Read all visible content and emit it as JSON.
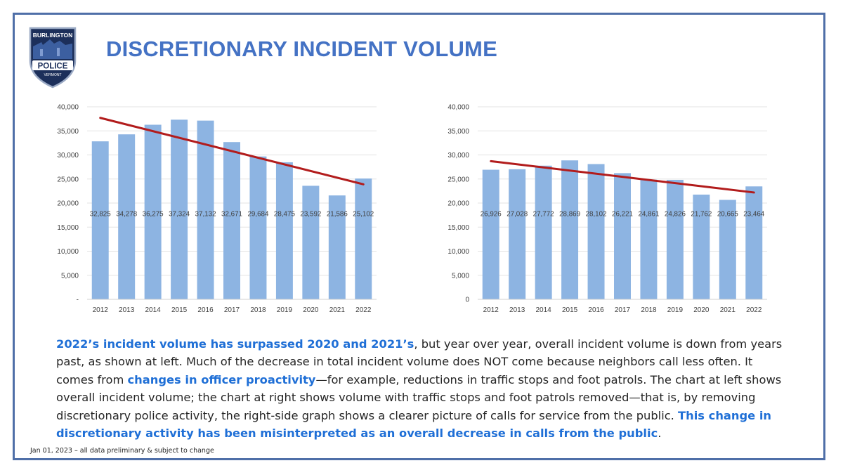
{
  "page": {
    "title": "DISCRETIONARY INCIDENT VOLUME",
    "logo": {
      "top_text": "BURLINGTON",
      "main_text": "POLICE",
      "bottom_text": "VERMONT"
    },
    "body": {
      "p1_hl": "2022’s incident volume has surpassed 2020 and 2021’s",
      "p1_rest": ", but year over year, overall incident volume is down from years past, as shown at left. Much of the decrease in total incident volume does NOT come because neighbors call less often. It comes from ",
      "p2_hl": "changes in officer proactivity",
      "p2_rest": "—for example, reductions in traffic stops and foot patrols. The chart at left shows overall incident volume; the chart at right shows volume with traffic stops and foot patrols removed—that is, by removing discretionary police activity, the right-side graph shows a clearer picture of calls for service from the public. ",
      "p3_hl": "This change in discretionary activity has been misinterpreted as an overall decrease in calls from the public",
      "p3_end": "."
    },
    "footnote": "Jan 01, 2023 – all data preliminary & subject to change"
  },
  "colors": {
    "accent": "#4472c4",
    "bar": "#8db4e2",
    "trend": "#b21c1c",
    "frame": "#4f6fa8"
  },
  "chart_data": [
    {
      "type": "bar",
      "categories": [
        "2012",
        "2013",
        "2014",
        "2015",
        "2016",
        "2017",
        "2018",
        "2019",
        "2020",
        "2021",
        "2022"
      ],
      "values": [
        32825,
        34278,
        36275,
        37324,
        37132,
        32671,
        29684,
        28475,
        23592,
        21586,
        25102
      ],
      "data_labels": [
        "32,825",
        "34,278",
        "36,275",
        "37,324",
        "37,132",
        "32,671",
        "29,684",
        "28,475",
        "23,592",
        "21,586",
        "25,102"
      ],
      "ylim": [
        0,
        40000
      ],
      "yticks": [
        0,
        5000,
        10000,
        15000,
        20000,
        25000,
        30000,
        35000,
        40000
      ],
      "ytick_labels": [
        "-",
        "5,000",
        "10,000",
        "15,000",
        "20,000",
        "25,000",
        "30,000",
        "35,000",
        "40,000"
      ],
      "trendline": {
        "start": 37700,
        "end": 23900
      },
      "grid": true
    },
    {
      "type": "bar",
      "categories": [
        "2012",
        "2013",
        "2014",
        "2015",
        "2016",
        "2017",
        "2018",
        "2019",
        "2020",
        "2021",
        "2022"
      ],
      "values": [
        26926,
        27028,
        27772,
        28869,
        28102,
        26221,
        24861,
        24826,
        21762,
        20665,
        23464
      ],
      "data_labels": [
        "26,926",
        "27,028",
        "27,772",
        "28,869",
        "28,102",
        "26,221",
        "24,861",
        "24,826",
        "21,762",
        "20,665",
        "23,464"
      ],
      "ylim": [
        0,
        40000
      ],
      "yticks": [
        0,
        5000,
        10000,
        15000,
        20000,
        25000,
        30000,
        35000,
        40000
      ],
      "ytick_labels": [
        "0",
        "5,000",
        "10,000",
        "15,000",
        "20,000",
        "25,000",
        "30,000",
        "35,000",
        "40,000"
      ],
      "trendline": {
        "start": 28700,
        "end": 22200
      },
      "grid": true
    }
  ]
}
